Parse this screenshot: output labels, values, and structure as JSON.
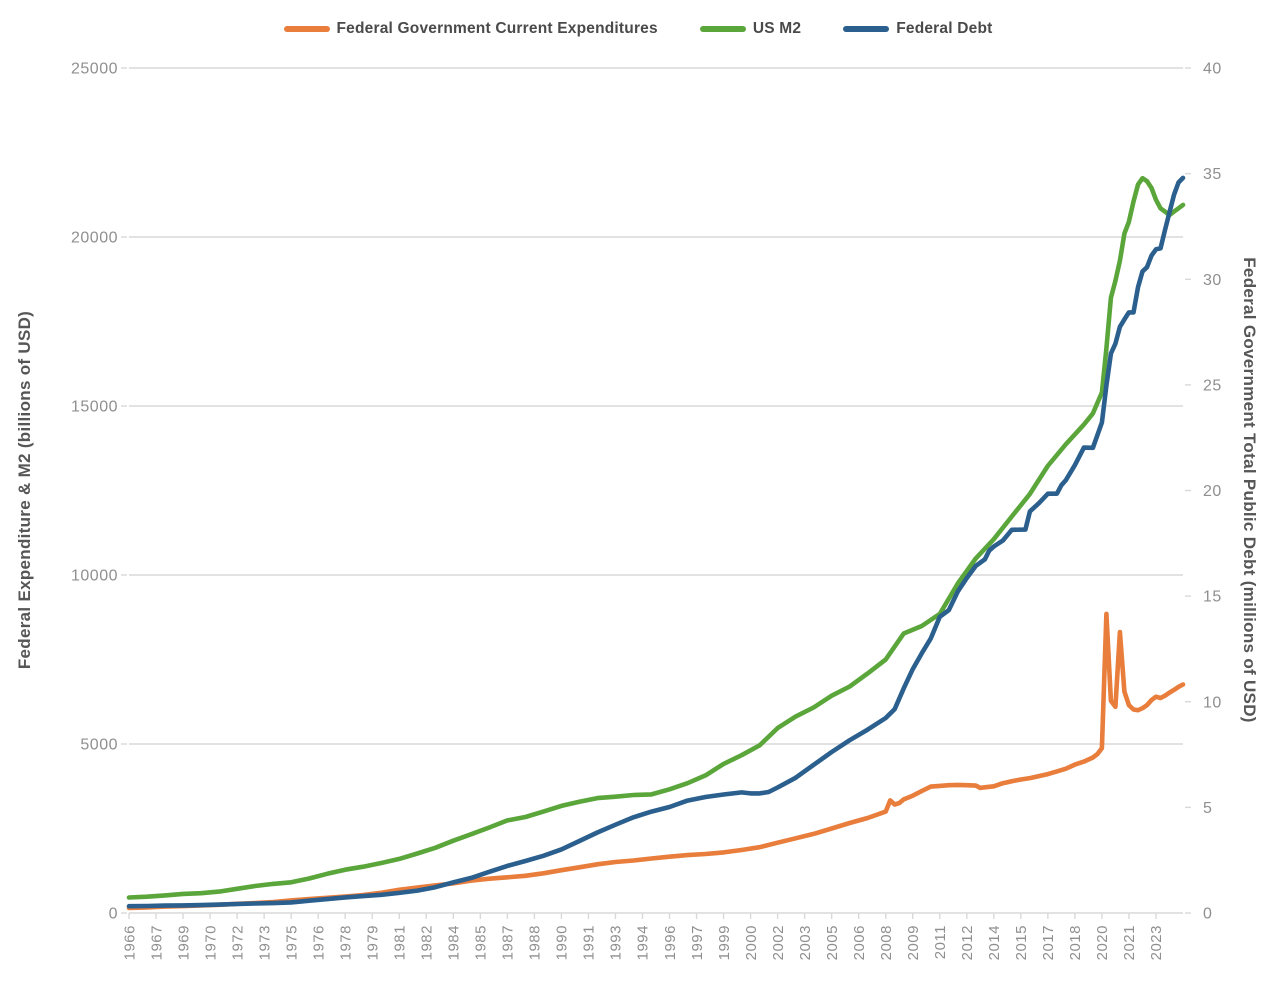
{
  "page": {
    "background": "#ffffff"
  },
  "chart_data": {
    "type": "line",
    "title": "",
    "legend_position": "top",
    "grid": "horizontal-only",
    "grid_color": "#d9d9d9",
    "tick_label_color": "#8f8f8f",
    "left_axis": {
      "label": "Federal Expenditure & M2 (billions of USD)",
      "ticks": [
        0,
        5000,
        10000,
        15000,
        20000,
        25000
      ],
      "range": [
        0,
        25000
      ]
    },
    "right_axis": {
      "label": "Federal Government Total Public Debt (millions of USD)",
      "ticks": [
        0,
        5,
        10,
        15,
        20,
        25,
        30,
        35,
        40
      ],
      "range": [
        0,
        40
      ]
    },
    "x_axis": {
      "range": [
        1966,
        2024.5
      ],
      "tick_interval_years": 1.5,
      "tick_labels": [
        "1966",
        "1967",
        "1969",
        "1970",
        "1972",
        "1973",
        "1975",
        "1976",
        "1978",
        "1979",
        "1981",
        "1982",
        "1984",
        "1985",
        "1987",
        "1988",
        "1990",
        "1991",
        "1993",
        "1994",
        "1996",
        "1997",
        "1999",
        "2000",
        "2002",
        "2003",
        "2005",
        "2006",
        "2008",
        "2009",
        "2011",
        "2012",
        "2014",
        "2015",
        "2017",
        "2018",
        "2020",
        "2021",
        "2023"
      ]
    },
    "series": [
      {
        "name": "Federal Government Current Expenditures",
        "color": "#E87D3C",
        "axis": "left",
        "points": [
          [
            1966,
            147
          ],
          [
            1967,
            165
          ],
          [
            1968,
            188
          ],
          [
            1969,
            203
          ],
          [
            1970,
            222
          ],
          [
            1971,
            243
          ],
          [
            1972,
            271
          ],
          [
            1973,
            292
          ],
          [
            1974,
            323
          ],
          [
            1975,
            372
          ],
          [
            1976,
            414
          ],
          [
            1977,
            450
          ],
          [
            1978,
            487
          ],
          [
            1979,
            532
          ],
          [
            1980,
            598
          ],
          [
            1981,
            686
          ],
          [
            1982,
            754
          ],
          [
            1983,
            818
          ],
          [
            1984,
            877
          ],
          [
            1985,
            958
          ],
          [
            1986,
            1014
          ],
          [
            1987,
            1055
          ],
          [
            1988,
            1100
          ],
          [
            1989,
            1175
          ],
          [
            1990,
            1266
          ],
          [
            1991,
            1353
          ],
          [
            1992,
            1440
          ],
          [
            1993,
            1510
          ],
          [
            1994,
            1552
          ],
          [
            1995,
            1613
          ],
          [
            1996,
            1667
          ],
          [
            1997,
            1714
          ],
          [
            1998,
            1745
          ],
          [
            1999,
            1792
          ],
          [
            2000,
            1864
          ],
          [
            2001,
            1947
          ],
          [
            2002,
            2079
          ],
          [
            2003,
            2209
          ],
          [
            2004,
            2341
          ],
          [
            2005,
            2500
          ],
          [
            2006,
            2662
          ],
          [
            2007,
            2810
          ],
          [
            2008,
            3000
          ],
          [
            2008.25,
            3330
          ],
          [
            2008.5,
            3210
          ],
          [
            2008.75,
            3250
          ],
          [
            2009,
            3360
          ],
          [
            2009.5,
            3470
          ],
          [
            2010,
            3610
          ],
          [
            2010.5,
            3740
          ],
          [
            2011,
            3760
          ],
          [
            2011.5,
            3780
          ],
          [
            2012,
            3790
          ],
          [
            2012.5,
            3780
          ],
          [
            2013,
            3770
          ],
          [
            2013.25,
            3700
          ],
          [
            2013.5,
            3720
          ],
          [
            2014,
            3750
          ],
          [
            2014.5,
            3840
          ],
          [
            2015,
            3900
          ],
          [
            2015.5,
            3950
          ],
          [
            2016,
            3990
          ],
          [
            2016.5,
            4050
          ],
          [
            2017,
            4110
          ],
          [
            2017.5,
            4190
          ],
          [
            2018,
            4270
          ],
          [
            2018.5,
            4390
          ],
          [
            2019,
            4480
          ],
          [
            2019.5,
            4600
          ],
          [
            2019.75,
            4700
          ],
          [
            2020,
            4880
          ],
          [
            2020.25,
            8850
          ],
          [
            2020.5,
            6280
          ],
          [
            2020.75,
            6100
          ],
          [
            2021,
            8310
          ],
          [
            2021.25,
            6550
          ],
          [
            2021.5,
            6150
          ],
          [
            2021.75,
            6020
          ],
          [
            2022,
            6000
          ],
          [
            2022.25,
            6060
          ],
          [
            2022.5,
            6150
          ],
          [
            2022.75,
            6300
          ],
          [
            2023,
            6400
          ],
          [
            2023.25,
            6360
          ],
          [
            2023.5,
            6430
          ],
          [
            2023.75,
            6520
          ],
          [
            2024,
            6600
          ],
          [
            2024.25,
            6690
          ],
          [
            2024.5,
            6760
          ]
        ]
      },
      {
        "name": "US M2",
        "color": "#5AA63B",
        "axis": "left",
        "points": [
          [
            1966,
            459
          ],
          [
            1967,
            481
          ],
          [
            1968,
            522
          ],
          [
            1969,
            566
          ],
          [
            1970,
            587
          ],
          [
            1971,
            632
          ],
          [
            1972,
            717
          ],
          [
            1973,
            800
          ],
          [
            1974,
            860
          ],
          [
            1975,
            908
          ],
          [
            1976,
            1020
          ],
          [
            1977,
            1160
          ],
          [
            1978,
            1280
          ],
          [
            1979,
            1370
          ],
          [
            1980,
            1480
          ],
          [
            1981,
            1600
          ],
          [
            1982,
            1760
          ],
          [
            1983,
            1930
          ],
          [
            1984,
            2140
          ],
          [
            1985,
            2330
          ],
          [
            1986,
            2530
          ],
          [
            1987,
            2740
          ],
          [
            1988,
            2840
          ],
          [
            1989,
            3000
          ],
          [
            1990,
            3170
          ],
          [
            1991,
            3290
          ],
          [
            1992,
            3400
          ],
          [
            1993,
            3440
          ],
          [
            1994,
            3490
          ],
          [
            1995,
            3510
          ],
          [
            1996,
            3660
          ],
          [
            1997,
            3840
          ],
          [
            1998,
            4070
          ],
          [
            1999,
            4410
          ],
          [
            2000,
            4670
          ],
          [
            2001,
            4960
          ],
          [
            2002,
            5470
          ],
          [
            2003,
            5810
          ],
          [
            2004,
            6080
          ],
          [
            2005,
            6430
          ],
          [
            2006,
            6700
          ],
          [
            2007,
            7090
          ],
          [
            2008,
            7500
          ],
          [
            2009,
            8270
          ],
          [
            2010,
            8490
          ],
          [
            2011,
            8850
          ],
          [
            2012,
            9750
          ],
          [
            2013,
            10490
          ],
          [
            2014,
            11060
          ],
          [
            2015,
            11730
          ],
          [
            2016,
            12400
          ],
          [
            2017,
            13230
          ],
          [
            2018,
            13870
          ],
          [
            2019,
            14450
          ],
          [
            2019.5,
            14780
          ],
          [
            2020,
            15400
          ],
          [
            2020.25,
            16700
          ],
          [
            2020.5,
            18200
          ],
          [
            2020.75,
            18700
          ],
          [
            2021,
            19300
          ],
          [
            2021.25,
            20100
          ],
          [
            2021.5,
            20450
          ],
          [
            2021.75,
            21050
          ],
          [
            2022,
            21550
          ],
          [
            2022.25,
            21740
          ],
          [
            2022.5,
            21650
          ],
          [
            2022.75,
            21450
          ],
          [
            2023,
            21100
          ],
          [
            2023.25,
            20850
          ],
          [
            2023.5,
            20750
          ],
          [
            2023.75,
            20650
          ],
          [
            2024,
            20750
          ],
          [
            2024.25,
            20850
          ],
          [
            2024.5,
            20950
          ]
        ]
      },
      {
        "name": "Federal Debt",
        "color": "#2B5F8E",
        "axis": "right",
        "points": [
          [
            1966,
            0.32
          ],
          [
            1967,
            0.33
          ],
          [
            1968,
            0.348
          ],
          [
            1969,
            0.362
          ],
          [
            1970,
            0.372
          ],
          [
            1971,
            0.397
          ],
          [
            1972,
            0.427
          ],
          [
            1973,
            0.45
          ],
          [
            1974,
            0.47
          ],
          [
            1975,
            0.5
          ],
          [
            1976,
            0.58
          ],
          [
            1977,
            0.66
          ],
          [
            1978,
            0.74
          ],
          [
            1979,
            0.8
          ],
          [
            1980,
            0.863
          ],
          [
            1981,
            0.95
          ],
          [
            1982,
            1.06
          ],
          [
            1983,
            1.22
          ],
          [
            1984,
            1.45
          ],
          [
            1985,
            1.66
          ],
          [
            1986,
            1.95
          ],
          [
            1987,
            2.23
          ],
          [
            1988,
            2.46
          ],
          [
            1989,
            2.71
          ],
          [
            1990,
            3.01
          ],
          [
            1991,
            3.41
          ],
          [
            1992,
            3.81
          ],
          [
            1993,
            4.18
          ],
          [
            1994,
            4.53
          ],
          [
            1995,
            4.8
          ],
          [
            1996,
            5.02
          ],
          [
            1997,
            5.32
          ],
          [
            1998,
            5.49
          ],
          [
            1999,
            5.61
          ],
          [
            2000,
            5.71
          ],
          [
            2000.5,
            5.66
          ],
          [
            2001,
            5.66
          ],
          [
            2001.5,
            5.73
          ],
          [
            2002,
            5.94
          ],
          [
            2003,
            6.4
          ],
          [
            2004,
            7.01
          ],
          [
            2005,
            7.62
          ],
          [
            2006,
            8.18
          ],
          [
            2007,
            8.68
          ],
          [
            2008,
            9.23
          ],
          [
            2008.5,
            9.65
          ],
          [
            2009,
            10.63
          ],
          [
            2009.5,
            11.54
          ],
          [
            2010,
            12.3
          ],
          [
            2010.5,
            13.0
          ],
          [
            2011,
            14.02
          ],
          [
            2011.5,
            14.34
          ],
          [
            2012,
            15.22
          ],
          [
            2012.5,
            15.86
          ],
          [
            2013,
            16.43
          ],
          [
            2013.5,
            16.74
          ],
          [
            2013.75,
            17.16
          ],
          [
            2014,
            17.35
          ],
          [
            2014.5,
            17.63
          ],
          [
            2015,
            18.14
          ],
          [
            2015.75,
            18.15
          ],
          [
            2016,
            19.01
          ],
          [
            2016.5,
            19.4
          ],
          [
            2017,
            19.85
          ],
          [
            2017.5,
            19.85
          ],
          [
            2017.75,
            20.25
          ],
          [
            2018,
            20.49
          ],
          [
            2018.5,
            21.2
          ],
          [
            2019,
            22.03
          ],
          [
            2019.5,
            22.02
          ],
          [
            2020,
            23.22
          ],
          [
            2020.25,
            24.97
          ],
          [
            2020.5,
            26.48
          ],
          [
            2020.75,
            26.95
          ],
          [
            2021,
            27.75
          ],
          [
            2021.25,
            28.1
          ],
          [
            2021.5,
            28.43
          ],
          [
            2021.75,
            28.43
          ],
          [
            2022,
            29.62
          ],
          [
            2022.25,
            30.37
          ],
          [
            2022.5,
            30.57
          ],
          [
            2022.75,
            31.12
          ],
          [
            2023,
            31.42
          ],
          [
            2023.25,
            31.46
          ],
          [
            2023.5,
            32.33
          ],
          [
            2023.75,
            33.17
          ],
          [
            2024,
            34.0
          ],
          [
            2024.25,
            34.58
          ],
          [
            2024.5,
            34.8
          ]
        ]
      }
    ]
  }
}
